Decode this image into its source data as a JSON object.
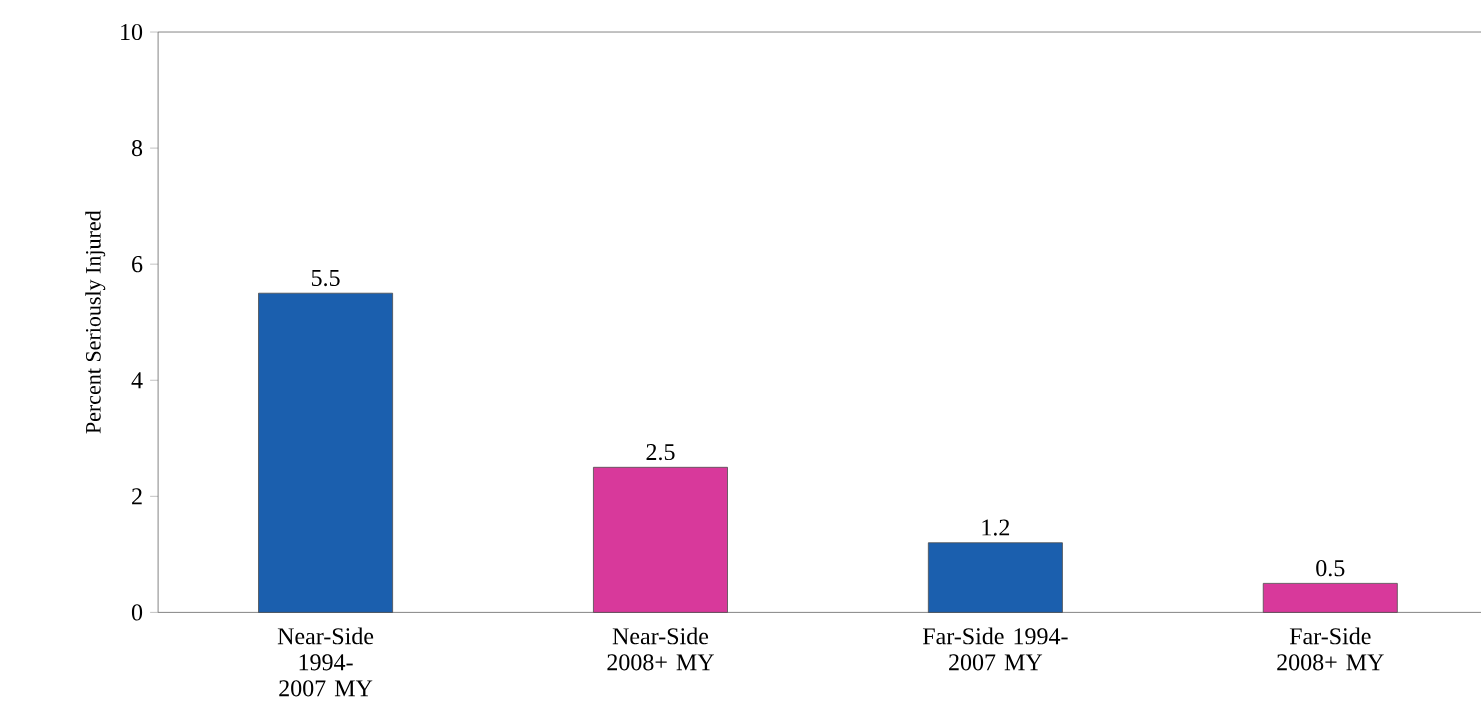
{
  "chart_data": {
    "type": "bar",
    "ylabel": "Percent Seriously Injured",
    "categories": [
      "Near-Side 1994-2007 MY",
      "Near-Side 2008+ MY",
      "Far-Side 1994-2007 MY",
      "Far-Side 2008+ MY"
    ],
    "values": [
      5.5,
      2.5,
      1.2,
      0.5
    ],
    "colors": [
      "#1b5fae",
      "#d8399b",
      "#1b5fae",
      "#d8399b"
    ],
    "ylim": [
      0,
      10
    ],
    "yticks": [
      0,
      2,
      4,
      6,
      8,
      10
    ],
    "data_labels": true,
    "grid": false
  }
}
